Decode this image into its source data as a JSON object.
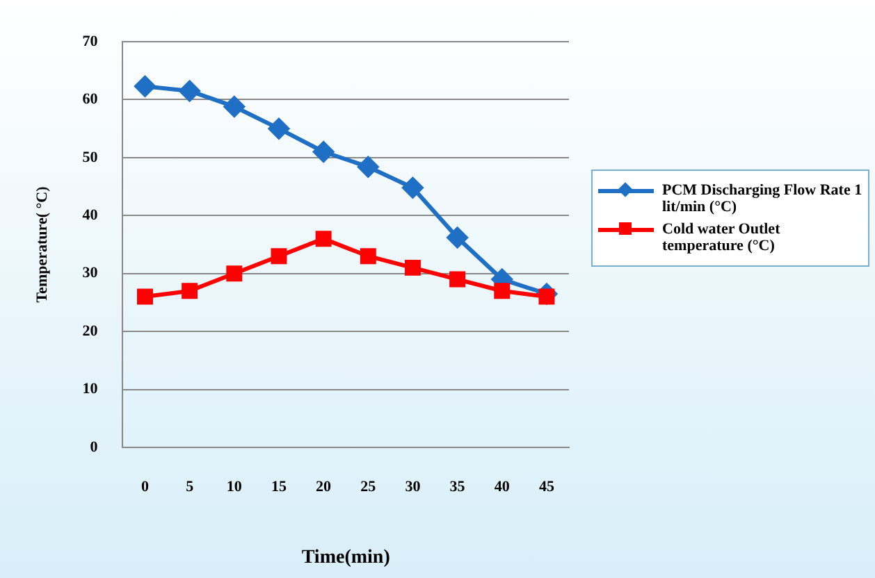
{
  "chart_data": {
    "type": "line",
    "xlabel": "Time(min)",
    "ylabel": "Temperature( °C)",
    "categories": [
      "0",
      "5",
      "10",
      "15",
      "20",
      "25",
      "30",
      "35",
      "40",
      "45"
    ],
    "ylim": [
      0,
      70
    ],
    "yticks": [
      0,
      10,
      20,
      30,
      40,
      50,
      60,
      70
    ],
    "grid": "y",
    "legend": "right",
    "line_style": "solid",
    "series": [
      {
        "name": "PCM  Discharging Flow Rate  1 lit/min (°C)",
        "color": "#1f6fc5",
        "marker": "diamond",
        "values": [
          62.3,
          61.5,
          58.8,
          55,
          51,
          48.4,
          44.8,
          36.2,
          29,
          26.5
        ]
      },
      {
        "name": "Cold water  Outlet temperature (°C)",
        "color": "#ff0000",
        "marker": "square",
        "values": [
          26,
          27,
          30,
          33,
          36,
          33,
          31,
          29,
          27,
          26
        ]
      }
    ]
  }
}
